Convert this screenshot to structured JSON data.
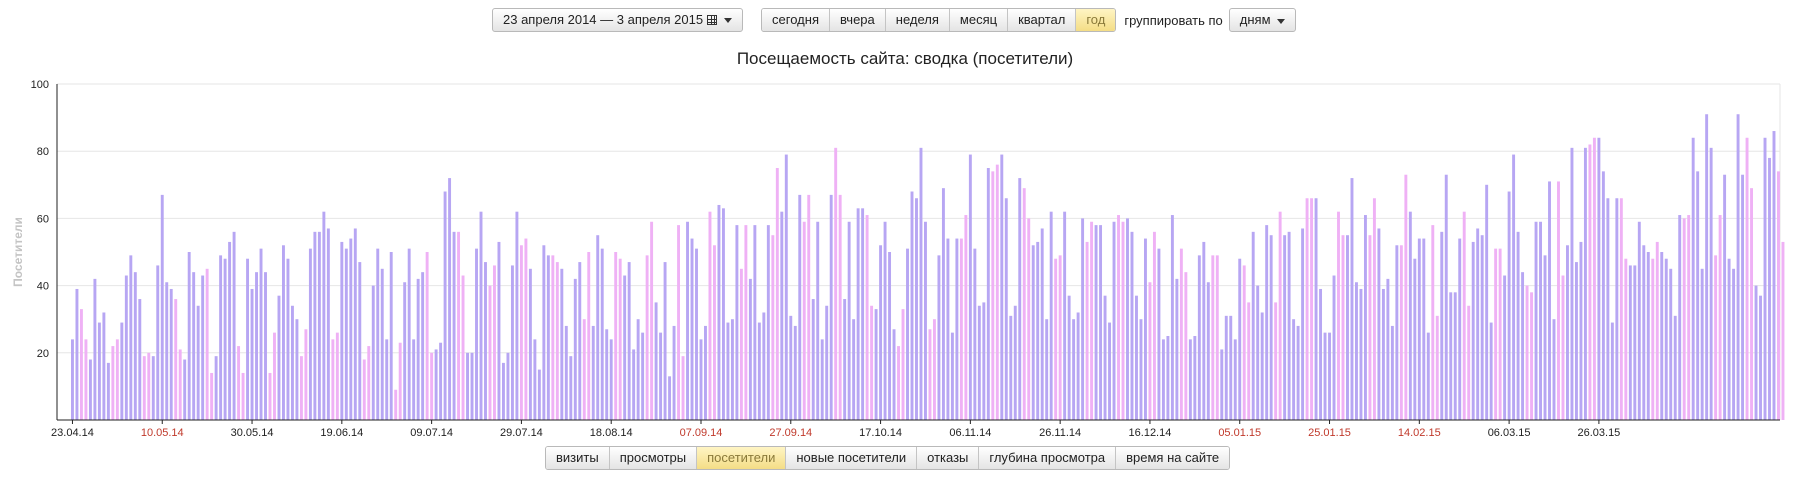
{
  "toolbar": {
    "date_range": "23 апреля 2014 — 3 апреля 2015",
    "periods": [
      "сегодня",
      "вчера",
      "неделя",
      "месяц",
      "квартал",
      "год"
    ],
    "active_period": "год",
    "group_label": "группировать по",
    "group_value": "дням"
  },
  "metrics": {
    "tabs": [
      "визиты",
      "просмотры",
      "посетители",
      "новые посетители",
      "отказы",
      "глубина просмотра",
      "время на сайте"
    ],
    "active": "посетители"
  },
  "colors": {
    "weekday": "#b7a6f3",
    "weekend": "#efb1f5",
    "highlight": "#d9b6f6",
    "holiday_tick": "#c0392b",
    "active_btn": "#f4dd86"
  },
  "chart_data": {
    "type": "bar",
    "title": "Посещаемость сайта: сводка (посетители)",
    "ylabel": "Посетители",
    "ylim": [
      0,
      100
    ],
    "yticks": [
      20,
      40,
      60,
      80,
      100
    ],
    "grid": true,
    "x_tick_labels": [
      {
        "label": "23.04.14",
        "holiday": false
      },
      {
        "label": "10.05.14",
        "holiday": true
      },
      {
        "label": "30.05.14",
        "holiday": false
      },
      {
        "label": "19.06.14",
        "holiday": false
      },
      {
        "label": "09.07.14",
        "holiday": false
      },
      {
        "label": "29.07.14",
        "holiday": false
      },
      {
        "label": "18.08.14",
        "holiday": false
      },
      {
        "label": "07.09.14",
        "holiday": true
      },
      {
        "label": "27.09.14",
        "holiday": true
      },
      {
        "label": "17.10.14",
        "holiday": false
      },
      {
        "label": "06.11.14",
        "holiday": false
      },
      {
        "label": "26.11.14",
        "holiday": false
      },
      {
        "label": "16.12.14",
        "holiday": false
      },
      {
        "label": "05.01.15",
        "holiday": true
      },
      {
        "label": "25.01.15",
        "holiday": true
      },
      {
        "label": "14.02.15",
        "holiday": true
      },
      {
        "label": "06.03.15",
        "holiday": false
      },
      {
        "label": "26.03.15",
        "holiday": false
      }
    ],
    "values": [
      24,
      39,
      33,
      24,
      18,
      42,
      29,
      32,
      17,
      22,
      24,
      29,
      43,
      49,
      44,
      36,
      19,
      20,
      19,
      46,
      67,
      41,
      39,
      36,
      21,
      18,
      50,
      44,
      34,
      43,
      45,
      14,
      19,
      49,
      48,
      53,
      56,
      22,
      14,
      48,
      39,
      44,
      51,
      44,
      14,
      26,
      37,
      52,
      48,
      34,
      30,
      19,
      27,
      51,
      56,
      56,
      62,
      57,
      24,
      26,
      53,
      51,
      54,
      57,
      47,
      18,
      22,
      40,
      51,
      45,
      24,
      50,
      9,
      23,
      41,
      51,
      24,
      42,
      44,
      50,
      20,
      21,
      23,
      68,
      72,
      56,
      56,
      43,
      20,
      20,
      51,
      62,
      47,
      40,
      46,
      53,
      17,
      20,
      46,
      62,
      52,
      54,
      45,
      24,
      15,
      52,
      49,
      49,
      47,
      45,
      28,
      19,
      42,
      47,
      30,
      50,
      28,
      55,
      51,
      27,
      24,
      50,
      48,
      43,
      47,
      21,
      30,
      26,
      49,
      59,
      35,
      26,
      47,
      13,
      28,
      58,
      19,
      59,
      54,
      51,
      24,
      28,
      62,
      52,
      64,
      63,
      29,
      30,
      58,
      45,
      58,
      42,
      58,
      29,
      32,
      58,
      55,
      75,
      62,
      79,
      31,
      28,
      67,
      59,
      67,
      36,
      59,
      24,
      34,
      67,
      81,
      67,
      36,
      59,
      30,
      63,
      63,
      61,
      34,
      33,
      52,
      59,
      50,
      27,
      22,
      33,
      51,
      68,
      66,
      81,
      59,
      27,
      30,
      49,
      69,
      54,
      26,
      54,
      54,
      61,
      79,
      51,
      34,
      35,
      75,
      74,
      76,
      79,
      66,
      31,
      34,
      72,
      69,
      60,
      52,
      53,
      57,
      30,
      62,
      48,
      49,
      62,
      37,
      30,
      32,
      60,
      53,
      59,
      58,
      58,
      37,
      29,
      59,
      61,
      59,
      60,
      56,
      37,
      30,
      54,
      41,
      56,
      51,
      24,
      25,
      61,
      42,
      51,
      44,
      24,
      25,
      49,
      53,
      41,
      49,
      49,
      21,
      31,
      31,
      24,
      48,
      46,
      35,
      56,
      40,
      32,
      58,
      55,
      35,
      62,
      55,
      56,
      30,
      28,
      57,
      66,
      66,
      66,
      39,
      26,
      26,
      43,
      62,
      55,
      55,
      72,
      41,
      39,
      61,
      55,
      66,
      57,
      39,
      42,
      28,
      52,
      52,
      73,
      62,
      48,
      54,
      54,
      26,
      58,
      31,
      56,
      73,
      38,
      38,
      54,
      62,
      34,
      53,
      57,
      55,
      70,
      29,
      51,
      51,
      43,
      68,
      79,
      56,
      44,
      40,
      38,
      59,
      59,
      49,
      71,
      30,
      71,
      43,
      52,
      81,
      47,
      53,
      81,
      82,
      84,
      84,
      74,
      66,
      29,
      66,
      66,
      48,
      46,
      46,
      59,
      52,
      50,
      48,
      53,
      50,
      48,
      45,
      31,
      61,
      60,
      61,
      84,
      74,
      45,
      91,
      81,
      49,
      61,
      73,
      48,
      45,
      91,
      73,
      84,
      69,
      40,
      37,
      84,
      78,
      86,
      74,
      53
    ]
  }
}
